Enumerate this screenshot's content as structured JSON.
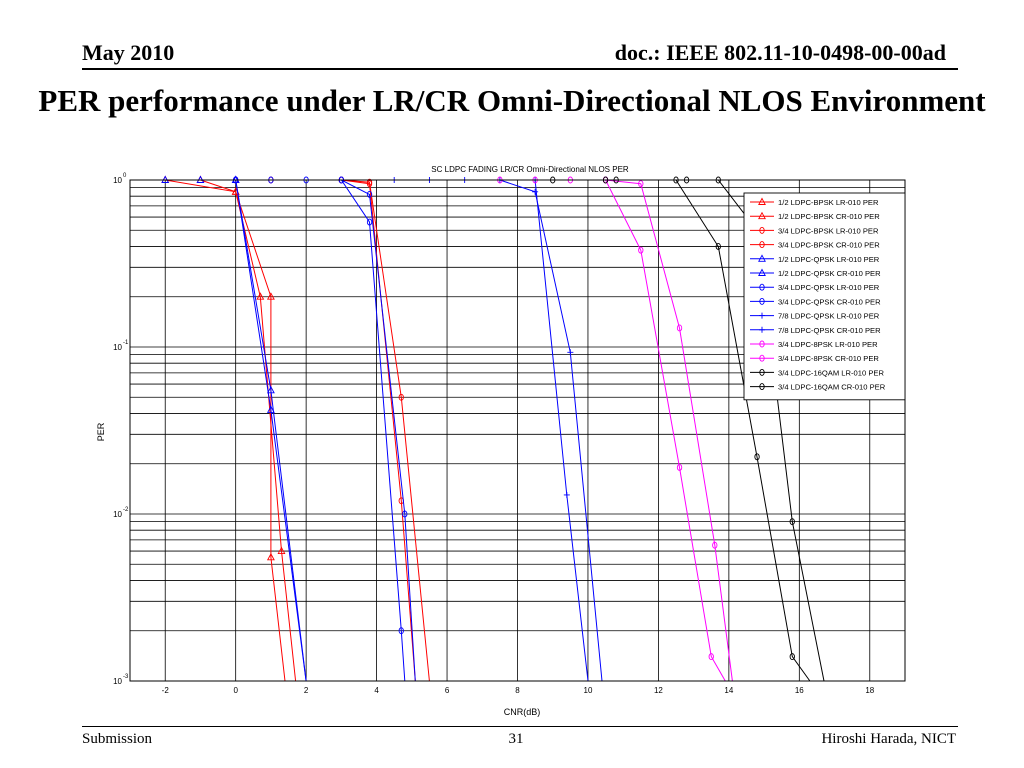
{
  "header": {
    "date": "May 2010",
    "doc": "doc.: IEEE 802.11-10-0498-00-00ad"
  },
  "slide_title": "PER performance under LR/CR Omni-Directional NLOS Environment",
  "footer": {
    "left": "Submission",
    "page": "31",
    "right": "Hiroshi Harada, NICT"
  },
  "chart_data": {
    "type": "line",
    "title": "SC LDPC FADING LR/CR Omni-Directional NLOS PER",
    "xlabel": "CNR(dB)",
    "ylabel": "PER",
    "xlim": [
      -3,
      19
    ],
    "ylim": [
      0.001,
      1
    ],
    "yscale": "log",
    "xticks": [
      -2,
      0,
      2,
      4,
      6,
      8,
      10,
      12,
      14,
      16,
      18
    ],
    "yticks": [
      {
        "base": "10",
        "exp": "0",
        "value": 1
      },
      {
        "base": "10",
        "exp": "-1",
        "value": 0.1
      },
      {
        "base": "10",
        "exp": "-2",
        "value": 0.01
      },
      {
        "base": "10",
        "exp": "-3",
        "value": 0.001
      }
    ],
    "grid": true,
    "legend_position": "top-right",
    "series": [
      {
        "name": "1/2 LDPC-BPSK LR-010 PER",
        "color": "#ff0000",
        "marker": "triangle",
        "x": [
          -3,
          -2,
          0,
          1,
          1,
          1.4
        ],
        "y": [
          1,
          1,
          0.85,
          0.2,
          0.0055,
          0.001
        ]
      },
      {
        "name": "1/2 LDPC-BPSK CR-010 PER",
        "color": "#ff0000",
        "marker": "triangle",
        "x": [
          -3,
          -1,
          0,
          0.7,
          1.3,
          1.7
        ],
        "y": [
          1,
          1,
          0.85,
          0.2,
          0.006,
          0.001
        ]
      },
      {
        "name": "3/4 LDPC-BPSK LR-010 PER",
        "color": "#ff0000",
        "marker": "circle",
        "x": [
          -3,
          0,
          3,
          3.8,
          4.7,
          5.1
        ],
        "y": [
          1,
          1,
          1,
          0.95,
          0.012,
          0.001
        ]
      },
      {
        "name": "3/4 LDPC-BPSK CR-010 PER",
        "color": "#ff0000",
        "marker": "circle",
        "x": [
          -3,
          1,
          3,
          3.8,
          4.7,
          5.5
        ],
        "y": [
          1,
          1,
          1,
          0.97,
          0.05,
          0.001
        ]
      },
      {
        "name": "1/2 LDPC-QPSK LR-010 PER",
        "color": "#0000ff",
        "marker": "triangle",
        "x": [
          -3,
          -2,
          0,
          1,
          2
        ],
        "y": [
          1,
          1,
          1,
          0.042,
          0.001
        ]
      },
      {
        "name": "1/2 LDPC-QPSK CR-010 PER",
        "color": "#0000ff",
        "marker": "triangle",
        "x": [
          -3,
          -1,
          0,
          1,
          2
        ],
        "y": [
          1,
          1,
          1,
          0.055,
          0.001
        ]
      },
      {
        "name": "3/4 LDPC-QPSK LR-010 PER",
        "color": "#0000ff",
        "marker": "circle",
        "x": [
          -3,
          0,
          1,
          3,
          3.8,
          4.7,
          4.8
        ],
        "y": [
          1,
          1,
          1,
          1,
          0.56,
          0.002,
          0.001
        ]
      },
      {
        "name": "3/4 LDPC-QPSK CR-010 PER",
        "color": "#0000ff",
        "marker": "circle",
        "x": [
          -3,
          0,
          2,
          3,
          3.8,
          4.8,
          5.1
        ],
        "y": [
          1,
          1,
          1,
          1,
          0.82,
          0.01,
          0.001
        ]
      },
      {
        "name": "7/8 LDPC-QPSK LR-010 PER",
        "color": "#0000ff",
        "marker": "plus",
        "x": [
          -3,
          4.5,
          6.5,
          8.5,
          9.4,
          10
        ],
        "y": [
          1,
          1,
          1,
          1,
          0.013,
          0.001
        ]
      },
      {
        "name": "7/8 LDPC-QPSK CR-010 PER",
        "color": "#0000ff",
        "marker": "plus",
        "x": [
          -3,
          5.5,
          7.5,
          8.5,
          9.5,
          10.4
        ],
        "y": [
          1,
          1,
          1,
          0.85,
          0.093,
          0.001
        ]
      },
      {
        "name": "3/4 LDPC-8PSK LR-010 PER",
        "color": "#ff00ff",
        "marker": "circle",
        "x": [
          -3,
          7.5,
          9.5,
          10.5,
          11.5,
          12.6,
          13.5,
          13.9
        ],
        "y": [
          1,
          1,
          1,
          1,
          0.38,
          0.019,
          0.0014,
          0.001
        ]
      },
      {
        "name": "3/4 LDPC-8PSK CR-010 PER",
        "color": "#ff00ff",
        "marker": "circle",
        "x": [
          -3,
          8.5,
          10.5,
          11.5,
          12.6,
          13.6,
          14.1
        ],
        "y": [
          1,
          1,
          1,
          0.95,
          0.13,
          0.0065,
          0.001
        ]
      },
      {
        "name": "3/4 LDPC-16QAM LR-010 PER",
        "color": "#000000",
        "marker": "circle",
        "x": [
          -3,
          9,
          10.5,
          12.5,
          13.7,
          14.8,
          15.8,
          16.3
        ],
        "y": [
          1,
          1,
          1,
          1,
          0.4,
          0.022,
          0.0014,
          0.001
        ]
      },
      {
        "name": "3/4 LDPC-16QAM CR-010 PER",
        "color": "#000000",
        "marker": "circle",
        "x": [
          -3,
          10.8,
          12.8,
          13.7,
          14.8,
          15.8,
          16.7
        ],
        "y": [
          1,
          1,
          1,
          1,
          0.5,
          0.009,
          0.001
        ]
      }
    ]
  }
}
